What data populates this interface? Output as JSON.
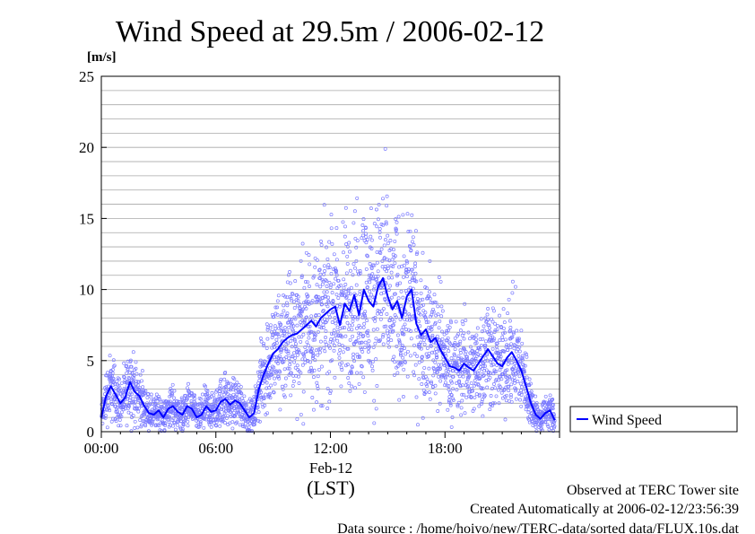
{
  "chart_data": {
    "type": "scatter",
    "title": "Wind Speed at 29.5m / 2006-02-12",
    "ylabel": "[m/s]",
    "xlabel": "(LST)",
    "x_date_label": "Feb-12",
    "xlim": [
      "00:00",
      "24:00"
    ],
    "ylim": [
      0,
      25
    ],
    "y_ticks": [
      0,
      5,
      10,
      15,
      20,
      25
    ],
    "y_tick_labels": [
      "0",
      "5",
      "10",
      "15",
      "20",
      "25"
    ],
    "x_ticks": [
      "00:00",
      "06:00",
      "12:00",
      "18:00"
    ],
    "x_tick_labels": [
      "00:00",
      "06:00",
      "12:00",
      "18:00"
    ],
    "grid": true,
    "legend_position": "right",
    "series": [
      {
        "name": "Wind Speed",
        "color": "#0000ff",
        "scatter_color": "#7b7bff",
        "x": [
          "00:00",
          "00:15",
          "00:30",
          "00:45",
          "01:00",
          "01:15",
          "01:30",
          "01:45",
          "02:00",
          "02:15",
          "02:30",
          "02:45",
          "03:00",
          "03:15",
          "03:30",
          "03:45",
          "04:00",
          "04:15",
          "04:30",
          "04:45",
          "05:00",
          "05:15",
          "05:30",
          "05:45",
          "06:00",
          "06:15",
          "06:30",
          "06:45",
          "07:00",
          "07:15",
          "07:30",
          "07:45",
          "08:00",
          "08:15",
          "08:30",
          "08:45",
          "09:00",
          "09:15",
          "09:30",
          "09:45",
          "10:00",
          "10:15",
          "10:30",
          "10:45",
          "11:00",
          "11:15",
          "11:30",
          "11:45",
          "12:00",
          "12:15",
          "12:30",
          "12:45",
          "13:00",
          "13:15",
          "13:30",
          "13:45",
          "14:00",
          "14:15",
          "14:30",
          "14:45",
          "15:00",
          "15:15",
          "15:30",
          "15:45",
          "16:00",
          "16:15",
          "16:30",
          "16:45",
          "17:00",
          "17:15",
          "17:30",
          "17:45",
          "18:00",
          "18:15",
          "18:30",
          "18:45",
          "19:00",
          "19:15",
          "19:30",
          "19:45",
          "20:00",
          "20:15",
          "20:30",
          "20:45",
          "21:00",
          "21:15",
          "21:30",
          "21:45",
          "22:00",
          "22:15",
          "22:30",
          "22:45",
          "23:00",
          "23:15",
          "23:30",
          "23:45"
        ],
        "values": [
          1.0,
          2.5,
          3.2,
          2.6,
          2.0,
          2.4,
          3.5,
          2.8,
          2.5,
          1.8,
          1.3,
          1.2,
          1.5,
          1.0,
          1.6,
          1.8,
          1.4,
          1.2,
          1.8,
          1.6,
          1.0,
          1.2,
          1.8,
          1.4,
          1.5,
          2.1,
          2.3,
          1.9,
          2.2,
          2.0,
          1.5,
          1.0,
          1.3,
          3.0,
          4.0,
          4.8,
          5.5,
          5.8,
          6.3,
          6.6,
          6.8,
          6.9,
          7.2,
          7.5,
          7.8,
          7.4,
          8.0,
          8.3,
          8.6,
          8.8,
          7.5,
          9.0,
          8.5,
          9.6,
          8.2,
          10.0,
          9.2,
          8.8,
          10.2,
          10.8,
          9.5,
          8.6,
          9.2,
          8.0,
          9.5,
          10.0,
          7.6,
          6.8,
          7.2,
          6.3,
          6.6,
          5.8,
          5.2,
          4.6,
          4.5,
          4.3,
          4.8,
          4.5,
          4.3,
          4.8,
          5.3,
          5.8,
          5.3,
          4.8,
          4.6,
          5.2,
          5.6,
          5.0,
          4.3,
          3.2,
          2.0,
          1.2,
          0.9,
          1.3,
          1.5,
          0.8
        ]
      }
    ]
  },
  "footer": {
    "line1": "Observed at TERC Tower site",
    "line2": "Created Automatically at 2006-02-12/23:56:39",
    "line3": "Data source : /home/hoivo/new/TERC-data/sorted  data/FLUX.10s.dat"
  }
}
